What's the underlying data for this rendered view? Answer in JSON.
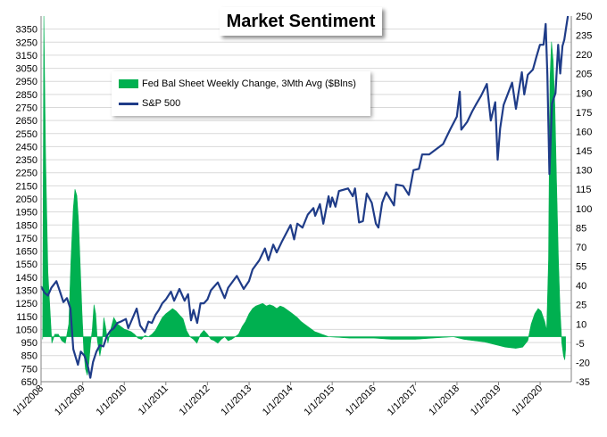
{
  "chart_data": {
    "type": "line",
    "title": "Market Sentiment",
    "colors": {
      "fed": "#00b050",
      "spx": "#1f3c88",
      "grid": "#d9d9d9"
    },
    "left_axis": {
      "ylim": [
        650,
        3450
      ],
      "ticks": [
        650,
        750,
        850,
        950,
        1050,
        1150,
        1250,
        1350,
        1450,
        1550,
        1650,
        1750,
        1850,
        1950,
        2050,
        2150,
        2250,
        2350,
        2450,
        2550,
        2650,
        2750,
        2850,
        2950,
        3050,
        3150,
        3250,
        3350
      ]
    },
    "right_axis": {
      "ylim": [
        -35,
        250
      ],
      "ticks": [
        -35,
        -20,
        -5,
        10,
        25,
        40,
        55,
        70,
        85,
        100,
        115,
        130,
        145,
        160,
        175,
        190,
        205,
        220,
        235,
        250
      ]
    },
    "x_axis": {
      "xlim": [
        "2008-01-01",
        "2020-10-01"
      ],
      "tick_labels": [
        "1/1/2008",
        "1/1/2009",
        "1/1/2010",
        "1/1/2011",
        "1/1/2012",
        "1/1/2013",
        "1/1/2014",
        "1/1/2015",
        "1/1/2016",
        "1/1/2017",
        "1/1/2018",
        "1/1/2019",
        "1/1/2020"
      ],
      "tick_dates": [
        "2008-01-01",
        "2009-01-01",
        "2010-01-01",
        "2011-01-01",
        "2012-01-01",
        "2013-01-01",
        "2014-01-01",
        "2015-01-01",
        "2016-01-01",
        "2017-01-01",
        "2018-01-01",
        "2019-01-01",
        "2020-01-01"
      ]
    },
    "series": [
      {
        "name": "Fed Bal Sheet Weekly Change, 3Mth Avg ($Blns)",
        "type": "area",
        "axis": "right",
        "points": [
          [
            "2008-01-15",
            -2
          ],
          [
            "2008-01-25",
            250
          ],
          [
            "2008-02-10",
            140
          ],
          [
            "2008-03-01",
            50
          ],
          [
            "2008-03-20",
            20
          ],
          [
            "2008-04-05",
            -5
          ],
          [
            "2008-05-01",
            2
          ],
          [
            "2008-06-01",
            2
          ],
          [
            "2008-07-01",
            -3
          ],
          [
            "2008-08-01",
            -5
          ],
          [
            "2008-09-01",
            10
          ],
          [
            "2008-09-20",
            60
          ],
          [
            "2008-10-10",
            100
          ],
          [
            "2008-10-25",
            115
          ],
          [
            "2008-11-10",
            110
          ],
          [
            "2008-11-25",
            90
          ],
          [
            "2008-12-10",
            55
          ],
          [
            "2008-12-25",
            20
          ],
          [
            "2009-01-10",
            -10
          ],
          [
            "2009-01-25",
            -25
          ],
          [
            "2009-02-10",
            -30
          ],
          [
            "2009-02-25",
            -20
          ],
          [
            "2009-03-10",
            -5
          ],
          [
            "2009-03-25",
            5
          ],
          [
            "2009-04-10",
            25
          ],
          [
            "2009-04-25",
            18
          ],
          [
            "2009-05-10",
            -3
          ],
          [
            "2009-06-01",
            -15
          ],
          [
            "2009-06-20",
            -5
          ],
          [
            "2009-07-05",
            15
          ],
          [
            "2009-07-20",
            8
          ],
          [
            "2009-08-10",
            -5
          ],
          [
            "2009-09-01",
            5
          ],
          [
            "2009-10-01",
            15
          ],
          [
            "2009-11-01",
            10
          ],
          [
            "2009-12-01",
            8
          ],
          [
            "2010-01-01",
            6
          ],
          [
            "2010-02-01",
            5
          ],
          [
            "2010-03-01",
            4
          ],
          [
            "2010-04-01",
            2
          ],
          [
            "2010-05-01",
            -1
          ],
          [
            "2010-06-01",
            -2
          ],
          [
            "2010-07-01",
            1
          ],
          [
            "2010-08-01",
            0
          ],
          [
            "2010-09-01",
            2
          ],
          [
            "2010-10-01",
            5
          ],
          [
            "2010-11-01",
            10
          ],
          [
            "2010-12-01",
            15
          ],
          [
            "2011-01-01",
            18
          ],
          [
            "2011-02-01",
            20
          ],
          [
            "2011-03-01",
            22
          ],
          [
            "2011-04-01",
            20
          ],
          [
            "2011-05-01",
            17
          ],
          [
            "2011-06-01",
            14
          ],
          [
            "2011-07-01",
            5
          ],
          [
            "2011-08-01",
            0
          ],
          [
            "2011-09-01",
            -2
          ],
          [
            "2011-10-01",
            -5
          ],
          [
            "2011-11-01",
            2
          ],
          [
            "2011-12-01",
            5
          ],
          [
            "2012-01-01",
            2
          ],
          [
            "2012-02-01",
            -2
          ],
          [
            "2012-03-01",
            -3
          ],
          [
            "2012-04-01",
            -5
          ],
          [
            "2012-05-01",
            -2
          ],
          [
            "2012-06-01",
            0
          ],
          [
            "2012-07-01",
            -3
          ],
          [
            "2012-08-01",
            -2
          ],
          [
            "2012-09-01",
            0
          ],
          [
            "2012-10-01",
            2
          ],
          [
            "2012-11-01",
            8
          ],
          [
            "2012-12-01",
            12
          ],
          [
            "2013-01-01",
            18
          ],
          [
            "2013-02-01",
            22
          ],
          [
            "2013-03-01",
            24
          ],
          [
            "2013-04-01",
            25
          ],
          [
            "2013-05-01",
            26
          ],
          [
            "2013-06-01",
            24
          ],
          [
            "2013-07-01",
            25
          ],
          [
            "2013-08-01",
            24
          ],
          [
            "2013-09-01",
            22
          ],
          [
            "2013-10-01",
            24
          ],
          [
            "2013-11-01",
            23
          ],
          [
            "2013-12-01",
            21
          ],
          [
            "2014-01-01",
            19
          ],
          [
            "2014-02-01",
            17
          ],
          [
            "2014-03-01",
            15
          ],
          [
            "2014-04-01",
            12
          ],
          [
            "2014-05-01",
            10
          ],
          [
            "2014-06-01",
            8
          ],
          [
            "2014-07-01",
            6
          ],
          [
            "2014-08-01",
            4
          ],
          [
            "2014-09-01",
            3
          ],
          [
            "2014-10-01",
            2
          ],
          [
            "2014-11-01",
            1
          ],
          [
            "2014-12-01",
            0
          ],
          [
            "2015-06-01",
            -1
          ],
          [
            "2016-01-01",
            -1
          ],
          [
            "2016-06-01",
            -2
          ],
          [
            "2017-01-01",
            -2
          ],
          [
            "2017-06-01",
            -1
          ],
          [
            "2017-12-01",
            0
          ],
          [
            "2018-03-01",
            -2
          ],
          [
            "2018-06-01",
            -3
          ],
          [
            "2018-09-01",
            -4
          ],
          [
            "2018-12-01",
            -6
          ],
          [
            "2019-03-01",
            -8
          ],
          [
            "2019-06-01",
            -9
          ],
          [
            "2019-08-01",
            -8
          ],
          [
            "2019-09-15",
            -3
          ],
          [
            "2019-10-15",
            10
          ],
          [
            "2019-11-15",
            18
          ],
          [
            "2019-12-15",
            22
          ],
          [
            "2020-01-10",
            20
          ],
          [
            "2020-02-10",
            12
          ],
          [
            "2020-02-28",
            5
          ],
          [
            "2020-03-15",
            60
          ],
          [
            "2020-03-28",
            200
          ],
          [
            "2020-04-10",
            230
          ],
          [
            "2020-04-25",
            215
          ],
          [
            "2020-05-10",
            180
          ],
          [
            "2020-05-25",
            120
          ],
          [
            "2020-06-10",
            60
          ],
          [
            "2020-06-25",
            20
          ],
          [
            "2020-07-10",
            -5
          ],
          [
            "2020-07-25",
            -15
          ],
          [
            "2020-08-05",
            -18
          ],
          [
            "2020-08-12",
            -10
          ]
        ]
      },
      {
        "name": "S&P 500",
        "type": "line",
        "axis": "left",
        "points": [
          [
            "2008-01-01",
            1380
          ],
          [
            "2008-02-01",
            1330
          ],
          [
            "2008-03-01",
            1310
          ],
          [
            "2008-04-01",
            1370
          ],
          [
            "2008-05-15",
            1420
          ],
          [
            "2008-06-15",
            1340
          ],
          [
            "2008-07-15",
            1260
          ],
          [
            "2008-08-15",
            1290
          ],
          [
            "2008-09-15",
            1210
          ],
          [
            "2008-10-10",
            900
          ],
          [
            "2008-11-20",
            780
          ],
          [
            "2008-12-15",
            880
          ],
          [
            "2009-01-15",
            850
          ],
          [
            "2009-02-15",
            770
          ],
          [
            "2009-03-09",
            680
          ],
          [
            "2009-04-01",
            800
          ],
          [
            "2009-05-01",
            880
          ],
          [
            "2009-06-01",
            930
          ],
          [
            "2009-07-01",
            920
          ],
          [
            "2009-08-01",
            1000
          ],
          [
            "2009-09-01",
            1040
          ],
          [
            "2009-10-01",
            1060
          ],
          [
            "2009-11-01",
            1100
          ],
          [
            "2009-12-01",
            1110
          ],
          [
            "2010-01-15",
            1130
          ],
          [
            "2010-02-05",
            1060
          ],
          [
            "2010-04-20",
            1210
          ],
          [
            "2010-05-20",
            1080
          ],
          [
            "2010-07-01",
            1030
          ],
          [
            "2010-08-01",
            1110
          ],
          [
            "2010-09-01",
            1100
          ],
          [
            "2010-10-01",
            1160
          ],
          [
            "2010-11-01",
            1200
          ],
          [
            "2010-12-01",
            1250
          ],
          [
            "2011-01-01",
            1280
          ],
          [
            "2011-02-15",
            1340
          ],
          [
            "2011-03-15",
            1270
          ],
          [
            "2011-04-30",
            1360
          ],
          [
            "2011-06-15",
            1270
          ],
          [
            "2011-07-15",
            1320
          ],
          [
            "2011-08-10",
            1120
          ],
          [
            "2011-09-01",
            1200
          ],
          [
            "2011-10-03",
            1100
          ],
          [
            "2011-11-01",
            1250
          ],
          [
            "2011-12-01",
            1250
          ],
          [
            "2012-01-01",
            1280
          ],
          [
            "2012-02-01",
            1350
          ],
          [
            "2012-04-01",
            1410
          ],
          [
            "2012-06-01",
            1290
          ],
          [
            "2012-07-01",
            1370
          ],
          [
            "2012-09-15",
            1460
          ],
          [
            "2012-11-15",
            1360
          ],
          [
            "2012-12-31",
            1420
          ],
          [
            "2013-02-01",
            1510
          ],
          [
            "2013-04-01",
            1580
          ],
          [
            "2013-05-20",
            1670
          ],
          [
            "2013-06-20",
            1580
          ],
          [
            "2013-08-01",
            1700
          ],
          [
            "2013-09-01",
            1640
          ],
          [
            "2013-10-15",
            1720
          ],
          [
            "2013-12-31",
            1850
          ],
          [
            "2014-02-01",
            1740
          ],
          [
            "2014-03-01",
            1860
          ],
          [
            "2014-04-15",
            1830
          ],
          [
            "2014-06-01",
            1930
          ],
          [
            "2014-07-20",
            1980
          ],
          [
            "2014-08-05",
            1920
          ],
          [
            "2014-09-15",
            2010
          ],
          [
            "2014-10-15",
            1860
          ],
          [
            "2014-11-30",
            2070
          ],
          [
            "2014-12-15",
            1990
          ],
          [
            "2015-01-01",
            2060
          ],
          [
            "2015-01-30",
            1990
          ],
          [
            "2015-03-01",
            2110
          ],
          [
            "2015-05-20",
            2130
          ],
          [
            "2015-07-01",
            2070
          ],
          [
            "2015-07-20",
            2130
          ],
          [
            "2015-08-25",
            1870
          ],
          [
            "2015-09-28",
            1880
          ],
          [
            "2015-11-01",
            2090
          ],
          [
            "2015-12-15",
            2020
          ],
          [
            "2016-01-20",
            1860
          ],
          [
            "2016-02-11",
            1830
          ],
          [
            "2016-03-15",
            2020
          ],
          [
            "2016-04-20",
            2100
          ],
          [
            "2016-06-27",
            2000
          ],
          [
            "2016-07-15",
            2160
          ],
          [
            "2016-09-15",
            2150
          ],
          [
            "2016-11-04",
            2080
          ],
          [
            "2016-12-15",
            2270
          ],
          [
            "2017-02-01",
            2280
          ],
          [
            "2017-03-01",
            2390
          ],
          [
            "2017-05-01",
            2390
          ],
          [
            "2017-07-01",
            2430
          ],
          [
            "2017-09-01",
            2470
          ],
          [
            "2017-11-01",
            2580
          ],
          [
            "2017-12-31",
            2680
          ],
          [
            "2018-01-26",
            2870
          ],
          [
            "2018-02-08",
            2580
          ],
          [
            "2018-04-01",
            2640
          ],
          [
            "2018-05-15",
            2720
          ],
          [
            "2018-06-15",
            2770
          ],
          [
            "2018-08-01",
            2840
          ],
          [
            "2018-09-20",
            2930
          ],
          [
            "2018-10-25",
            2650
          ],
          [
            "2018-12-03",
            2790
          ],
          [
            "2018-12-24",
            2350
          ],
          [
            "2019-01-15",
            2590
          ],
          [
            "2019-02-15",
            2770
          ],
          [
            "2019-04-30",
            2940
          ],
          [
            "2019-06-03",
            2740
          ],
          [
            "2019-07-25",
            3020
          ],
          [
            "2019-08-15",
            2850
          ],
          [
            "2019-09-15",
            3000
          ],
          [
            "2019-10-30",
            3040
          ],
          [
            "2019-11-30",
            3140
          ],
          [
            "2019-12-31",
            3230
          ],
          [
            "2020-01-31",
            3230
          ],
          [
            "2020-02-19",
            3390
          ],
          [
            "2020-03-05",
            3000
          ],
          [
            "2020-03-23",
            2240
          ],
          [
            "2020-04-15",
            2780
          ],
          [
            "2020-05-15",
            2860
          ],
          [
            "2020-06-08",
            3230
          ],
          [
            "2020-06-26",
            3010
          ],
          [
            "2020-07-15",
            3220
          ],
          [
            "2020-08-01",
            3270
          ],
          [
            "2020-08-20",
            3380
          ],
          [
            "2020-09-01",
            3450
          ]
        ]
      }
    ]
  }
}
